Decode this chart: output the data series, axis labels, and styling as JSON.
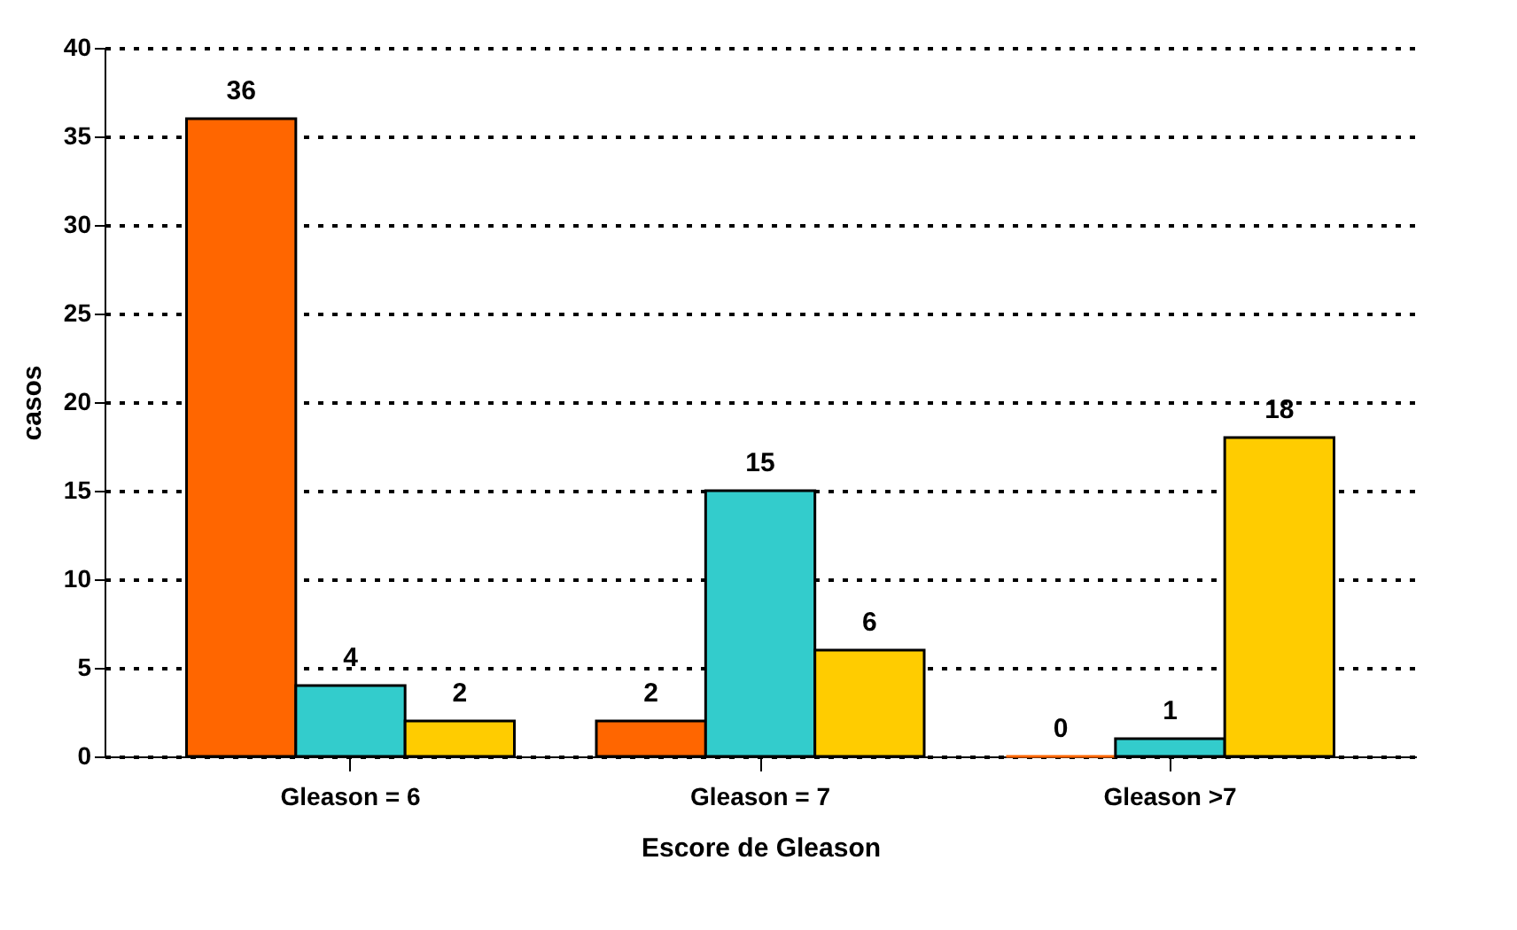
{
  "chart_data": {
    "type": "bar",
    "xlabel": "Escore de Gleason",
    "ylabel": "casos",
    "categories": [
      "Gleason = 6",
      "Gleason = 7",
      "Gleason >7"
    ],
    "series": [
      {
        "color": "#ff6600",
        "values": [
          36,
          2,
          0
        ]
      },
      {
        "color": "#33cccc",
        "values": [
          4,
          15,
          1
        ]
      },
      {
        "color": "#ffcc00",
        "values": [
          2,
          6,
          18
        ]
      }
    ],
    "ylim": [
      0,
      40
    ],
    "yticks": [
      0,
      5,
      10,
      15,
      20,
      25,
      30,
      35,
      40
    ],
    "grid": "y",
    "legend": false,
    "data_labels": true
  }
}
